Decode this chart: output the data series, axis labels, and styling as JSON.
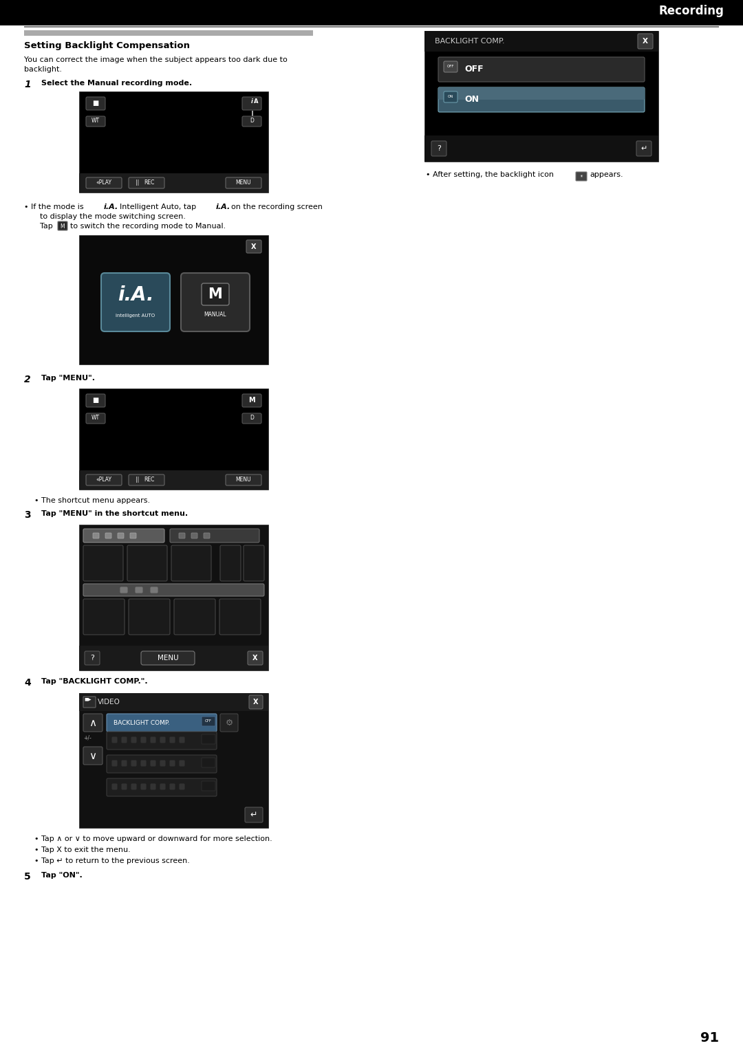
{
  "page_title": "Recording",
  "section_title": "Setting Backlight Compensation",
  "page_number": "91",
  "bg_color": "#ffffff",
  "top_bar_color": "#000000",
  "divider_color": "#888888",
  "section_bar_color": "#bbbbbb",
  "screen_bg": "#000000",
  "screen_dark": "#111111",
  "btn_gray": "#333333",
  "btn_med": "#444444",
  "btn_light": "#888888",
  "text_black": "#000000",
  "text_white": "#ffffff"
}
